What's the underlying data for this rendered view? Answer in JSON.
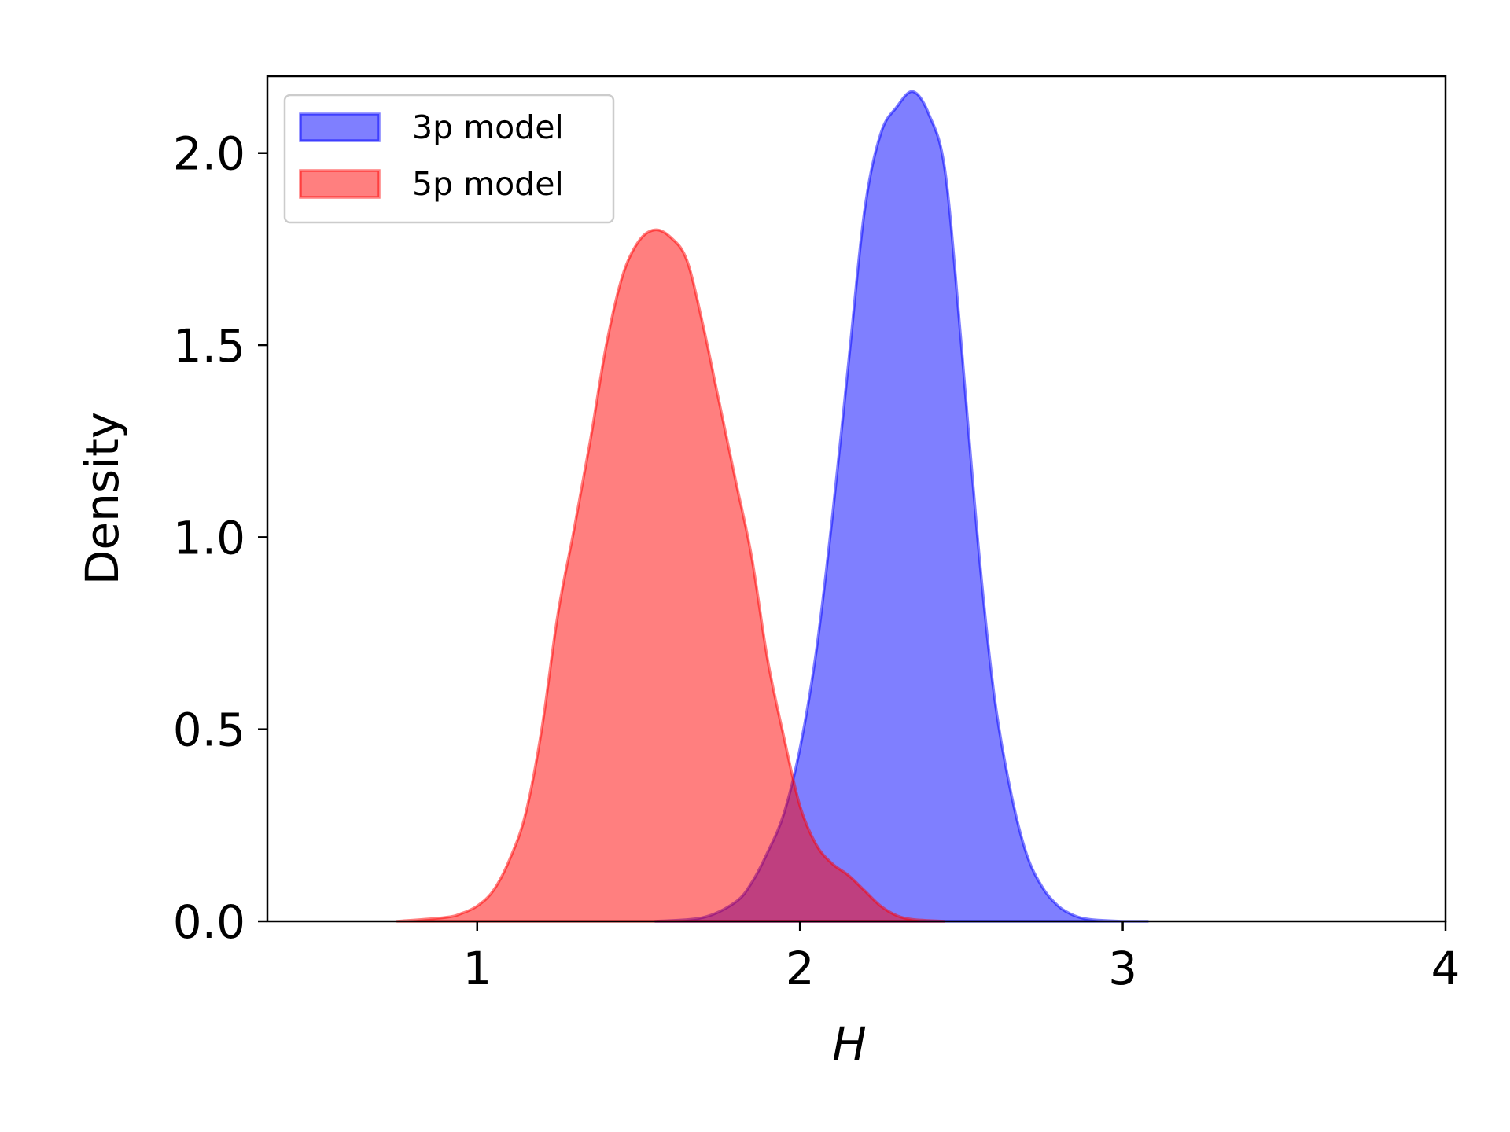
{
  "chart_data": {
    "type": "area",
    "title": "",
    "xlabel": "H",
    "ylabel": "Density",
    "xlim": [
      0.35,
      4.0
    ],
    "ylim": [
      0,
      2.2
    ],
    "xticks": [
      1,
      2,
      3,
      4
    ],
    "xtick_labels": [
      "1",
      "2",
      "3",
      "4"
    ],
    "yticks": [
      0.0,
      0.5,
      1.0,
      1.5,
      2.0
    ],
    "ytick_labels": [
      "0.0",
      "0.5",
      "1.0",
      "1.5",
      "2.0"
    ],
    "grid": false,
    "legend": "top-left",
    "series": [
      {
        "name": "3p model",
        "color": "#0000ff",
        "opacity": 0.5,
        "x": [
          1.55,
          1.7,
          1.8,
          1.85,
          1.9,
          1.95,
          2.0,
          2.05,
          2.1,
          2.15,
          2.2,
          2.25,
          2.3,
          2.35,
          2.4,
          2.45,
          2.5,
          2.55,
          2.6,
          2.65,
          2.7,
          2.75,
          2.8,
          2.85,
          2.9,
          3.0,
          3.08
        ],
        "y": [
          0.0,
          0.01,
          0.05,
          0.1,
          0.18,
          0.28,
          0.45,
          0.7,
          1.05,
          1.45,
          1.85,
          2.05,
          2.12,
          2.16,
          2.1,
          1.95,
          1.5,
          1.0,
          0.6,
          0.35,
          0.18,
          0.09,
          0.04,
          0.015,
          0.005,
          0.0,
          0.0
        ]
      },
      {
        "name": "5p model",
        "color": "#ff0000",
        "opacity": 0.5,
        "x": [
          0.75,
          0.9,
          0.95,
          1.0,
          1.05,
          1.1,
          1.15,
          1.2,
          1.25,
          1.3,
          1.35,
          1.4,
          1.45,
          1.5,
          1.55,
          1.6,
          1.65,
          1.7,
          1.75,
          1.8,
          1.85,
          1.9,
          1.95,
          2.0,
          2.05,
          2.1,
          2.15,
          2.2,
          2.25,
          2.3,
          2.35,
          2.45
        ],
        "y": [
          0.0,
          0.01,
          0.02,
          0.04,
          0.08,
          0.16,
          0.28,
          0.5,
          0.8,
          1.02,
          1.25,
          1.5,
          1.68,
          1.77,
          1.8,
          1.78,
          1.72,
          1.55,
          1.35,
          1.15,
          0.95,
          0.68,
          0.48,
          0.3,
          0.2,
          0.15,
          0.12,
          0.08,
          0.04,
          0.015,
          0.005,
          0.0
        ]
      }
    ]
  }
}
